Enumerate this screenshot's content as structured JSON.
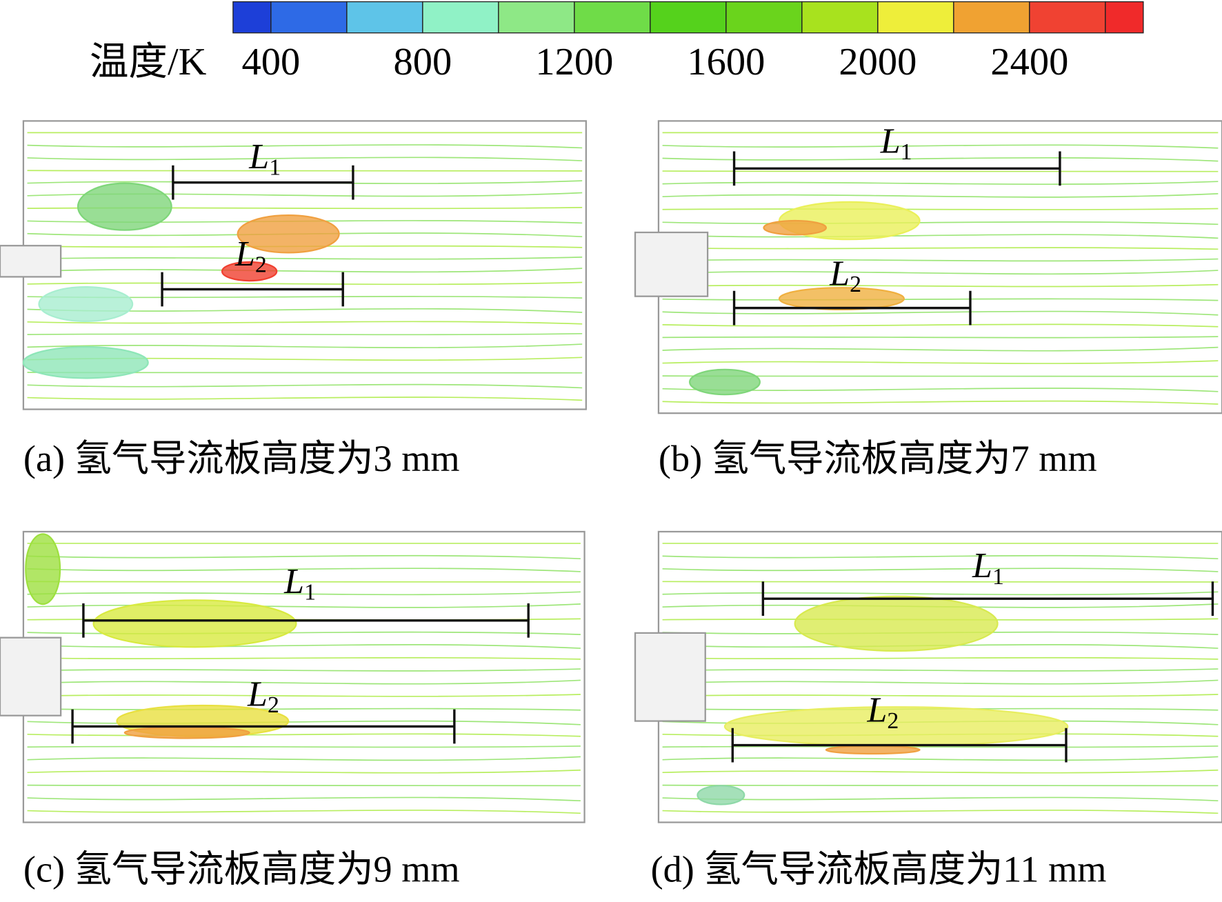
{
  "colorbar": {
    "label": "温度/K",
    "range": [
      300,
      2700
    ],
    "levels": [
      300,
      400,
      600,
      800,
      1000,
      1200,
      1400,
      1600,
      1800,
      2000,
      2200,
      2400,
      2600,
      2700
    ],
    "colors": [
      "#1d3fd8",
      "#2e6ae6",
      "#5ec4e8",
      "#90f2c6",
      "#8ee886",
      "#6fdc48",
      "#55d21c",
      "#6ad41c",
      "#a8e21e",
      "#eeee3a",
      "#f0a232",
      "#f04232",
      "#f02a2a"
    ],
    "ticks": [
      400,
      800,
      1200,
      1600,
      2000,
      2400
    ]
  },
  "panels": [
    {
      "caption": "(a) 氢气导流板高度为3 mm",
      "L1": {
        "symbol": "L",
        "subscript": "1"
      },
      "L2": {
        "symbol": "L",
        "subscript": "2"
      }
    },
    {
      "caption": "(b) 氢气导流板高度为7 mm",
      "L1": {
        "symbol": "L",
        "subscript": "1"
      },
      "L2": {
        "symbol": "L",
        "subscript": "2"
      }
    },
    {
      "caption": "(c) 氢气导流板高度为9 mm",
      "L1": {
        "symbol": "L",
        "subscript": "1"
      },
      "L2": {
        "symbol": "L",
        "subscript": "2"
      }
    },
    {
      "caption": "(d) 氢气导流板高度为11 mm",
      "L1": {
        "symbol": "L",
        "subscript": "1"
      },
      "L2": {
        "symbol": "L",
        "subscript": "2"
      }
    }
  ]
}
